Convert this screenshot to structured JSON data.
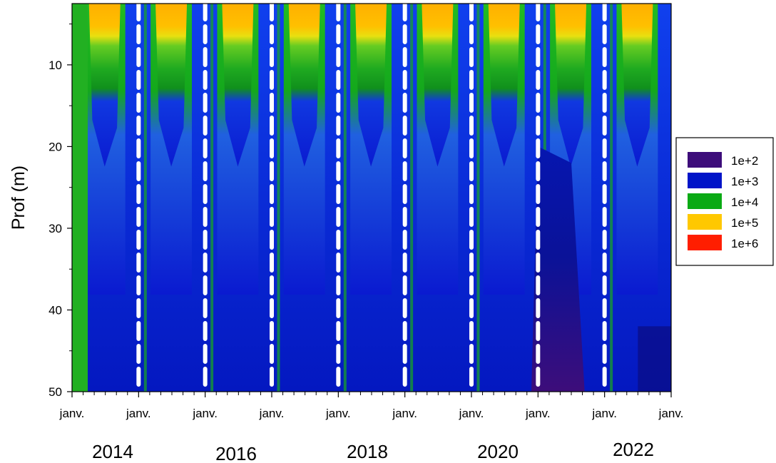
{
  "chart_data": {
    "type": "heatmap",
    "title": "",
    "ylabel": "Prof (m)",
    "xlabel": "",
    "y_reversed": true,
    "ylim": [
      2.5,
      50
    ],
    "yticks": [
      10,
      20,
      30,
      40,
      50
    ],
    "x_tick_labels": [
      "janv.",
      "janv.",
      "janv.",
      "janv.",
      "janv.",
      "janv.",
      "janv.",
      "janv.",
      "janv.",
      "janv."
    ],
    "year_labels": [
      "2014",
      "2016",
      "2018",
      "2020",
      "2022"
    ],
    "boundary_lines": {
      "style": "dashed",
      "color": "#ffffff"
    },
    "legend": {
      "placement": "right",
      "entries": [
        {
          "label": "1e+2",
          "color": "#3d0d7a"
        },
        {
          "label": "1e+3",
          "color": "#0014c8"
        },
        {
          "label": "1e+4",
          "color": "#0aaa14"
        },
        {
          "label": "1e+5",
          "color": "#ffc800"
        },
        {
          "label": "1e+6",
          "color": "#ff1e00"
        }
      ]
    },
    "colors": {
      "surface_high": "#ffb400",
      "mid": "#22bb22",
      "deep": "#1030e0",
      "very_low": "#3d0d7a"
    }
  }
}
